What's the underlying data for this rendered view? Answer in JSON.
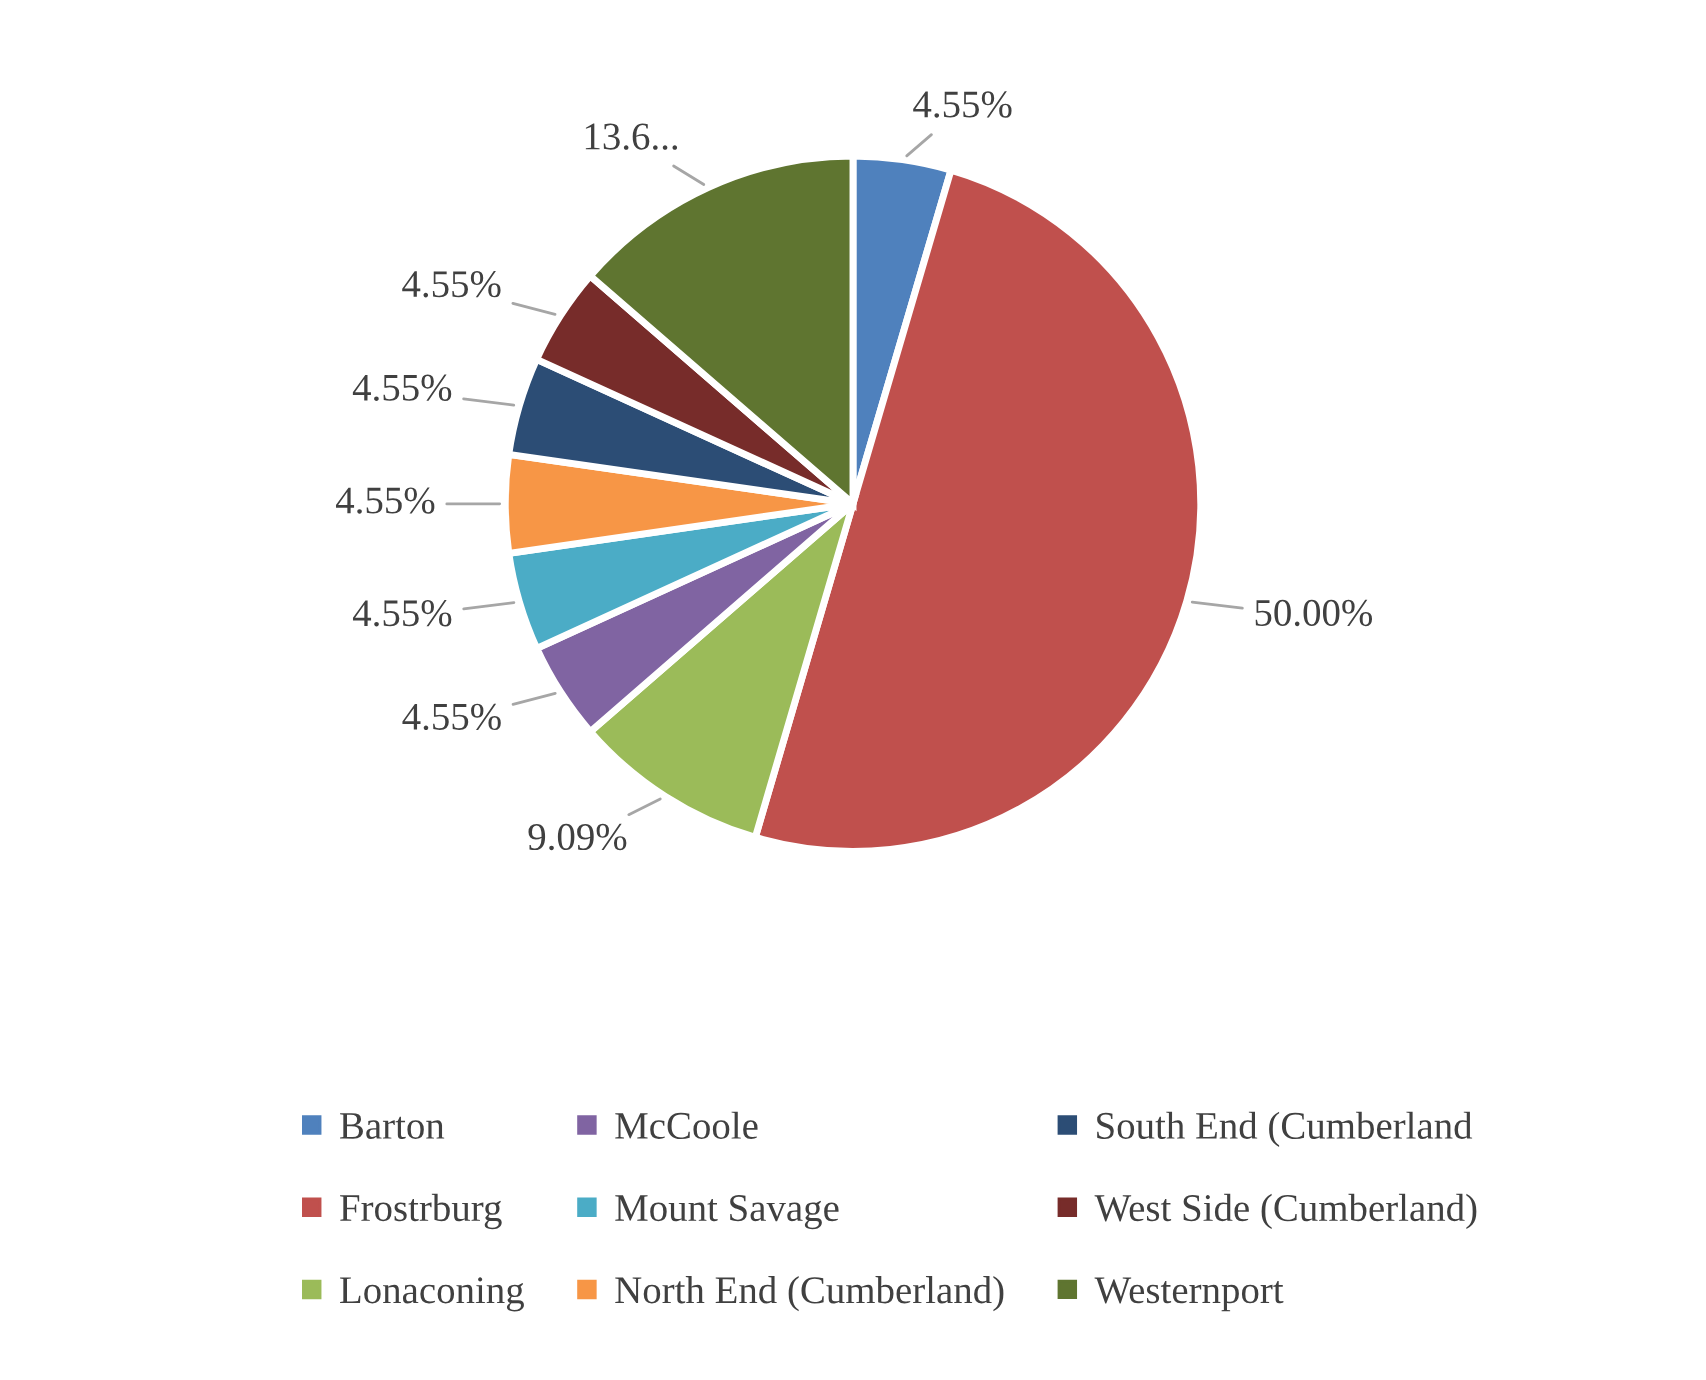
{
  "chart_data": {
    "type": "pie",
    "categories": [
      "Barton",
      "Frostrburg",
      "Lonaconing",
      "McCoole",
      "Mount Savage",
      "North End (Cumberland)",
      "South End (Cumberland",
      "West Side (Cumberland)",
      "Westernport"
    ],
    "values": [
      4.55,
      50.0,
      9.09,
      4.55,
      4.55,
      4.55,
      4.55,
      4.55,
      13.64
    ],
    "value_labels": [
      "4.55%",
      "50.00%",
      "9.09%",
      "4.55%",
      "4.55%",
      "4.55%",
      "4.55%",
      "4.55%",
      "13.6..."
    ],
    "colors": [
      "#4f81bd",
      "#c0504d",
      "#9bbb59",
      "#8064a2",
      "#4bacc6",
      "#f79646",
      "#2c4d75",
      "#772c2a",
      "#5f7530"
    ],
    "legend": "bottom"
  }
}
